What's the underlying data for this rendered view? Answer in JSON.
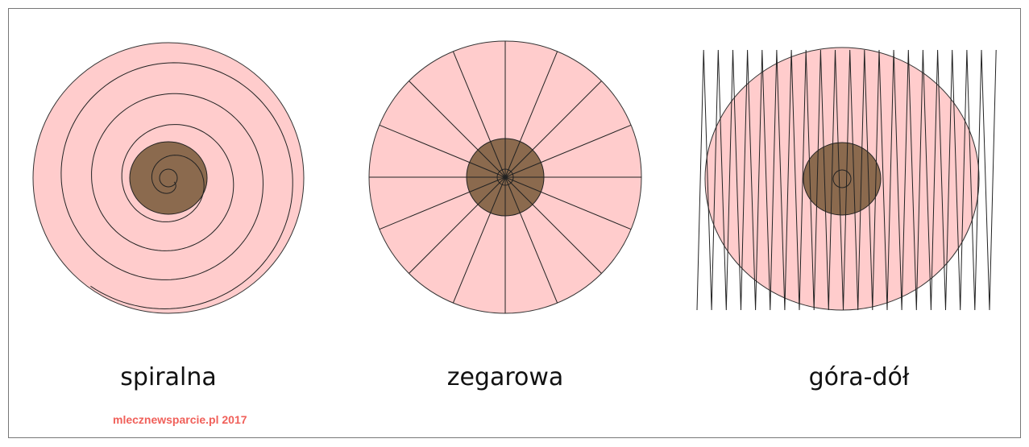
{
  "panels": [
    {
      "label": "spiralna"
    },
    {
      "label": "zegarowa"
    },
    {
      "label": "góra-dół"
    }
  ],
  "watermark": "mlecznewsparcie.pl 2017"
}
